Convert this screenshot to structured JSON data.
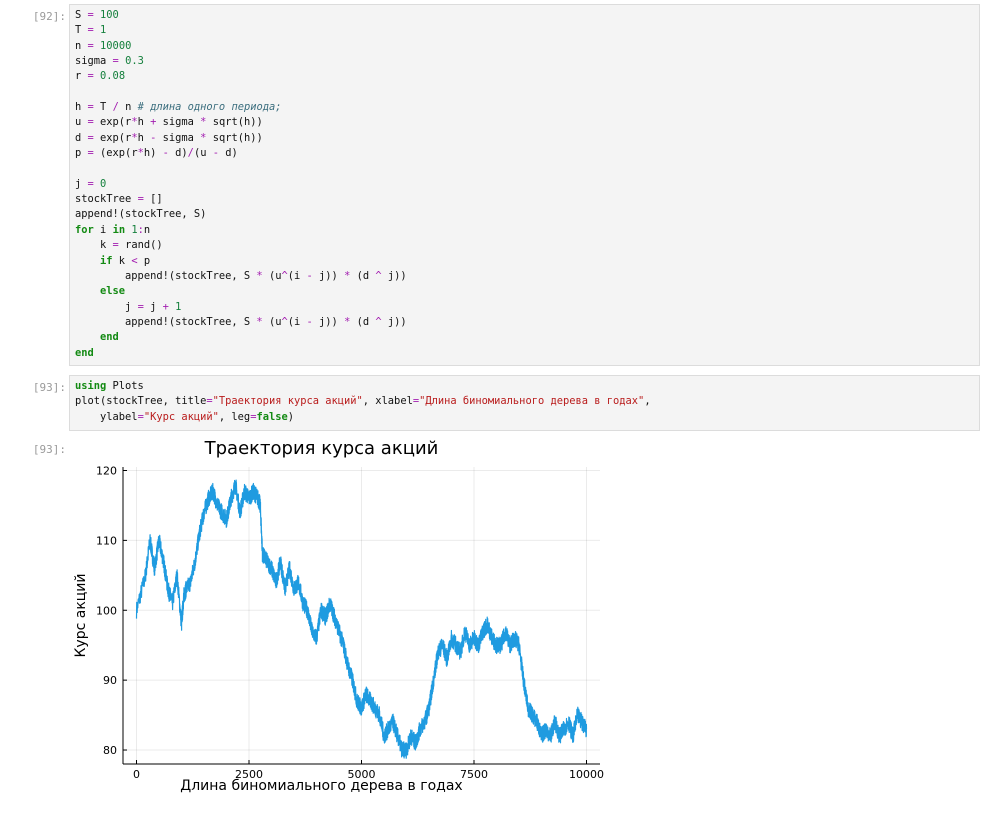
{
  "cells": [
    {
      "prompt": "[92]:",
      "code_lines": [
        [
          [
            "t",
            "S "
          ],
          [
            "op",
            "="
          ],
          [
            "t",
            " "
          ],
          [
            "num",
            "100"
          ]
        ],
        [
          [
            "t",
            "T "
          ],
          [
            "op",
            "="
          ],
          [
            "t",
            " "
          ],
          [
            "num",
            "1"
          ]
        ],
        [
          [
            "t",
            "n "
          ],
          [
            "op",
            "="
          ],
          [
            "t",
            " "
          ],
          [
            "num",
            "10000"
          ]
        ],
        [
          [
            "t",
            "sigma "
          ],
          [
            "op",
            "="
          ],
          [
            "t",
            " "
          ],
          [
            "num",
            "0.3"
          ]
        ],
        [
          [
            "t",
            "r "
          ],
          [
            "op",
            "="
          ],
          [
            "t",
            " "
          ],
          [
            "num",
            "0.08"
          ]
        ],
        [],
        [
          [
            "t",
            "h "
          ],
          [
            "op",
            "="
          ],
          [
            "t",
            " T "
          ],
          [
            "op",
            "/"
          ],
          [
            "t",
            " n "
          ],
          [
            "cmt",
            "# длина одного периода;"
          ]
        ],
        [
          [
            "t",
            "u "
          ],
          [
            "op",
            "="
          ],
          [
            "t",
            " exp(r"
          ],
          [
            "op",
            "*"
          ],
          [
            "t",
            "h "
          ],
          [
            "op",
            "+"
          ],
          [
            "t",
            " sigma "
          ],
          [
            "op",
            "*"
          ],
          [
            "t",
            " sqrt(h))"
          ]
        ],
        [
          [
            "t",
            "d "
          ],
          [
            "op",
            "="
          ],
          [
            "t",
            " exp(r"
          ],
          [
            "op",
            "*"
          ],
          [
            "t",
            "h "
          ],
          [
            "op",
            "-"
          ],
          [
            "t",
            " sigma "
          ],
          [
            "op",
            "*"
          ],
          [
            "t",
            " sqrt(h))"
          ]
        ],
        [
          [
            "t",
            "p "
          ],
          [
            "op",
            "="
          ],
          [
            "t",
            " (exp(r"
          ],
          [
            "op",
            "*"
          ],
          [
            "t",
            "h) "
          ],
          [
            "op",
            "-"
          ],
          [
            "t",
            " d)"
          ],
          [
            "op",
            "/"
          ],
          [
            "t",
            "(u "
          ],
          [
            "op",
            "-"
          ],
          [
            "t",
            " d)"
          ]
        ],
        [],
        [
          [
            "t",
            "j "
          ],
          [
            "op",
            "="
          ],
          [
            "t",
            " "
          ],
          [
            "num",
            "0"
          ]
        ],
        [
          [
            "t",
            "stockTree "
          ],
          [
            "op",
            "="
          ],
          [
            "t",
            " []"
          ]
        ],
        [
          [
            "t",
            "append!(stockTree, S)"
          ]
        ],
        [
          [
            "kw",
            "for"
          ],
          [
            "t",
            " i "
          ],
          [
            "kw",
            "in"
          ],
          [
            "t",
            " "
          ],
          [
            "num",
            "1"
          ],
          [
            "op",
            ":"
          ],
          [
            "t",
            "n"
          ]
        ],
        [
          [
            "t",
            "    k "
          ],
          [
            "op",
            "="
          ],
          [
            "t",
            " rand()"
          ]
        ],
        [
          [
            "t",
            "    "
          ],
          [
            "kw",
            "if"
          ],
          [
            "t",
            " k "
          ],
          [
            "op",
            "<"
          ],
          [
            "t",
            " p"
          ]
        ],
        [
          [
            "t",
            "        append!(stockTree, S "
          ],
          [
            "op",
            "*"
          ],
          [
            "t",
            " (u"
          ],
          [
            "op",
            "^"
          ],
          [
            "t",
            "(i "
          ],
          [
            "op",
            "-"
          ],
          [
            "t",
            " j)) "
          ],
          [
            "op",
            "*"
          ],
          [
            "t",
            " (d "
          ],
          [
            "op",
            "^"
          ],
          [
            "t",
            " j))"
          ]
        ],
        [
          [
            "t",
            "    "
          ],
          [
            "kw",
            "else"
          ]
        ],
        [
          [
            "t",
            "        j "
          ],
          [
            "op",
            "="
          ],
          [
            "t",
            " j "
          ],
          [
            "op",
            "+"
          ],
          [
            "t",
            " "
          ],
          [
            "num",
            "1"
          ]
        ],
        [
          [
            "t",
            "        append!(stockTree, S "
          ],
          [
            "op",
            "*"
          ],
          [
            "t",
            " (u"
          ],
          [
            "op",
            "^"
          ],
          [
            "t",
            "(i "
          ],
          [
            "op",
            "-"
          ],
          [
            "t",
            " j)) "
          ],
          [
            "op",
            "*"
          ],
          [
            "t",
            " (d "
          ],
          [
            "op",
            "^"
          ],
          [
            "t",
            " j))"
          ]
        ],
        [
          [
            "t",
            "    "
          ],
          [
            "kw",
            "end"
          ]
        ],
        [
          [
            "kw",
            "end"
          ]
        ]
      ]
    },
    {
      "prompt": "[93]:",
      "code_lines": [
        [
          [
            "kw",
            "using"
          ],
          [
            "t",
            " Plots"
          ]
        ],
        [
          [
            "t",
            "plot(stockTree, title"
          ],
          [
            "op",
            "="
          ],
          [
            "str",
            "\"Траектория курса акций\""
          ],
          [
            "t",
            ", xlabel"
          ],
          [
            "op",
            "="
          ],
          [
            "str",
            "\"Длина биномиального дерева в годах\""
          ],
          [
            "t",
            ","
          ]
        ],
        [
          [
            "t",
            "    ylabel"
          ],
          [
            "op",
            "="
          ],
          [
            "str",
            "\"Курс акций\""
          ],
          [
            "t",
            ", leg"
          ],
          [
            "op",
            "="
          ],
          [
            "kw",
            "false"
          ],
          [
            "t",
            ")"
          ]
        ]
      ]
    }
  ],
  "output": {
    "prompt": "[93]:"
  },
  "chart_data": {
    "type": "line",
    "title": "Траектория курса акций",
    "xlabel": "Длина биномиального дерева в годах",
    "ylabel": "Курс акций",
    "legend": false,
    "grid": true,
    "xlim": [
      -300,
      10300
    ],
    "ylim": [
      78,
      120.5
    ],
    "xticks": [
      0,
      2500,
      5000,
      7500,
      10000
    ],
    "yticks": [
      80,
      90,
      100,
      110,
      120
    ],
    "line_color": "#1f9be0",
    "series": [
      {
        "name": "y1",
        "x": [
          0,
          200,
          300,
          400,
          500,
          600,
          700,
          800,
          900,
          1000,
          1050,
          1100,
          1200,
          1300,
          1400,
          1500,
          1600,
          1700,
          1800,
          1900,
          2000,
          2100,
          2200,
          2300,
          2400,
          2500,
          2600,
          2700,
          2750,
          2800,
          2900,
          3000,
          3100,
          3200,
          3300,
          3400,
          3500,
          3600,
          3700,
          3800,
          3900,
          4000,
          4100,
          4200,
          4300,
          4400,
          4500,
          4600,
          4700,
          4800,
          4900,
          5000,
          5100,
          5200,
          5300,
          5400,
          5500,
          5600,
          5700,
          5800,
          5900,
          6000,
          6100,
          6200,
          6300,
          6400,
          6500,
          6600,
          6700,
          6800,
          6900,
          7000,
          7100,
          7200,
          7300,
          7400,
          7500,
          7600,
          7700,
          7800,
          7900,
          8000,
          8100,
          8200,
          8300,
          8400,
          8500,
          8600,
          8700,
          8800,
          8900,
          9000,
          9100,
          9200,
          9300,
          9400,
          9500,
          9600,
          9700,
          9800,
          9900,
          10000
        ],
        "y": [
          100,
          105,
          110,
          106,
          110,
          107,
          103,
          101,
          105,
          98,
          102,
          103,
          104,
          107,
          111,
          114,
          116,
          117,
          115,
          114,
          113,
          116,
          118,
          114,
          117,
          116,
          117,
          116,
          115,
          108,
          107,
          106,
          104,
          107,
          103,
          106,
          103,
          104,
          101,
          100,
          97,
          96,
          100,
          99,
          101,
          99,
          97,
          95,
          92,
          90,
          87,
          86,
          88,
          87,
          86,
          85,
          82,
          83,
          84,
          82,
          80,
          80,
          82,
          81,
          83,
          84,
          86,
          90,
          94,
          95,
          93,
          96,
          95,
          94,
          97,
          95,
          96,
          95,
          97,
          98,
          96,
          95,
          95,
          97,
          95,
          96,
          95,
          90,
          86,
          85,
          84,
          82,
          83,
          82,
          84,
          82,
          83,
          84,
          82,
          85,
          84,
          83
        ]
      }
    ]
  }
}
